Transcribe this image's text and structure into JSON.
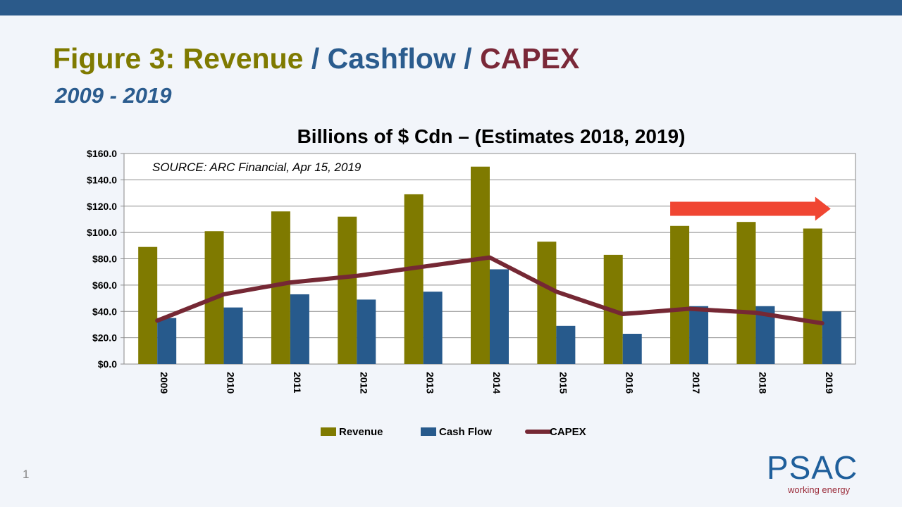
{
  "slide": {
    "title_revenue": "Figure 3: Revenue",
    "title_sep1": " / ",
    "title_cashflow": "Cashflow",
    "title_sep2": " / ",
    "title_capex": "CAPEX",
    "subtitle": "2009 - 2019",
    "page_number": "1"
  },
  "logo": {
    "text": "PSAC",
    "tagline": "working energy"
  },
  "colors": {
    "band": "#2b5a8a",
    "revenue": "#7f7a00",
    "cashflow": "#275a8c",
    "capex": "#752834",
    "arrow": "#f04632"
  },
  "chart_data": {
    "type": "bar",
    "title": "Billions of $ Cdn – (Estimates 2018, 2019)",
    "annotation": "SOURCE: ARC Financial, Apr 15, 2019",
    "categories": [
      "2009",
      "2010",
      "2011",
      "2012",
      "2013",
      "2014",
      "2015",
      "2016",
      "2017",
      "2018",
      "2019"
    ],
    "series": [
      {
        "name": "Revenue",
        "type": "bar",
        "values": [
          89,
          101,
          116,
          112,
          129,
          150,
          93,
          83,
          105,
          108,
          103
        ]
      },
      {
        "name": "Cash Flow",
        "type": "bar",
        "values": [
          35,
          43,
          53,
          49,
          55,
          72,
          29,
          23,
          44,
          44,
          40
        ]
      },
      {
        "name": "CAPEX",
        "type": "line",
        "values": [
          33,
          53,
          62,
          67,
          74,
          81,
          55,
          38,
          42,
          39,
          31
        ]
      }
    ],
    "ylim": [
      0,
      160
    ],
    "yticks": [
      "$0.0",
      "$20.0",
      "$40.0",
      "$60.0",
      "$80.0",
      "$100.0",
      "$120.0",
      "$140.0",
      "$160.0"
    ],
    "grid": true,
    "legend": "bottom",
    "trend_arrow": {
      "from": "2017",
      "to": "2019",
      "level": 118
    }
  }
}
